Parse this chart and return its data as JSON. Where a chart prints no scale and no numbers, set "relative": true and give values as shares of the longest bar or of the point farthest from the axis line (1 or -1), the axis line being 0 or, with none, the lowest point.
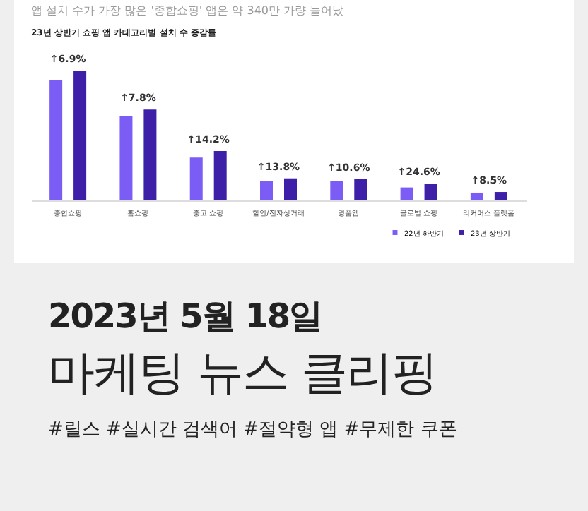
{
  "chart_data": {
    "type": "bar",
    "subtitle": "앱 설치 수가 가장 많은 '종합쇼핑' 앱은 약 340만 가량 늘어났",
    "title": "23년 상반기 쇼핑 앱 카테고리별 설치 수 증감률",
    "relative": true,
    "legend": "bottom right",
    "categories": [
      "종합쇼핑",
      "홈쇼핑",
      "중고 쇼핑",
      "할인/전자상거래",
      "명품앱",
      "글로벌 쇼핑",
      "리커머스 플랫폼"
    ],
    "series": [
      {
        "name": "22년 하반기",
        "color": "#7b5cf5",
        "values": [
          0.93,
          0.65,
          0.33,
          0.15,
          0.15,
          0.1,
          0.06
        ]
      },
      {
        "name": "23년 상반기",
        "color": "#3d1fa8",
        "values": [
          1,
          0.7,
          0.38,
          0.17,
          0.165,
          0.13,
          0.065
        ]
      }
    ],
    "annotations": [
      {
        "text": "↑6.9%",
        "x": "종합쇼핑",
        "y": 1
      },
      {
        "text": "↑7.8%",
        "x": "홈쇼핑",
        "y": 0.7
      },
      {
        "text": "↑14.2%",
        "x": "중고 쇼핑",
        "y": 0.38
      },
      {
        "text": "↑13.8%",
        "x": "할인/전자상거래",
        "y": 0.17
      },
      {
        "text": "↑10.6%",
        "x": "명품앱",
        "y": 0.165
      },
      {
        "text": "↑24.6%",
        "x": "글로벌 쇼핑",
        "y": 0.13
      },
      {
        "text": "↑8.5%",
        "x": "리커머스 플랫폼",
        "y": 0.065
      },
      "2023년 5월 18일",
      "마케팅 뉴스 클리핑",
      "#릴스 #실시간 검색어 #절약형 앱 #무제한 쿠폰"
    ]
  }
}
